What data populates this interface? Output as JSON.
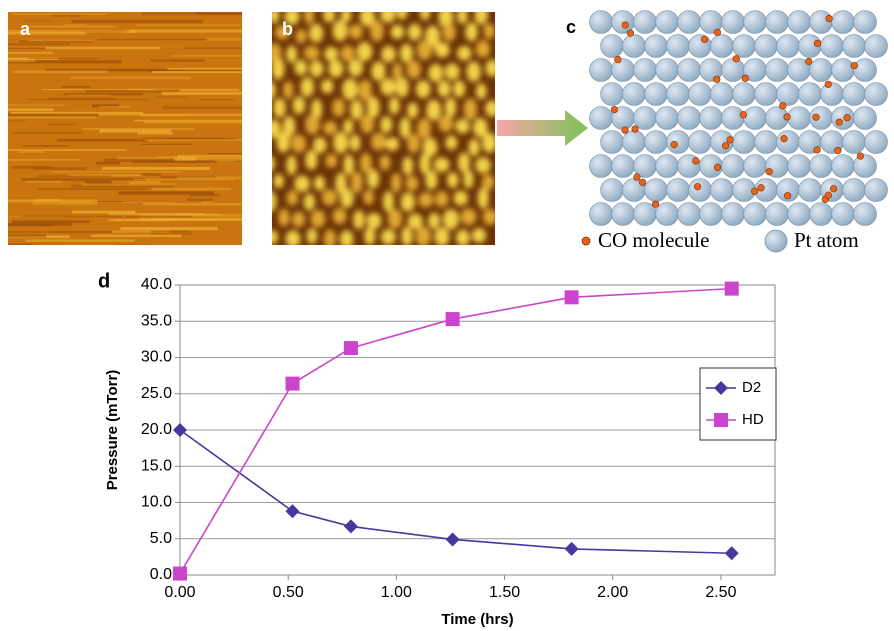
{
  "panel_labels": [
    "a",
    "b",
    "c",
    "d"
  ],
  "legend_c": [
    "CO molecule",
    "Pt atom"
  ],
  "chart_data": {
    "type": "line",
    "xlabel": "Time (hrs)",
    "ylabel": "Pressure (mTorr)",
    "x": [
      0,
      0.52,
      0.79,
      1.26,
      1.81,
      2.55
    ],
    "series": [
      {
        "name": "D2",
        "color": "#45389e",
        "marker": "diamond",
        "values": [
          20.0,
          8.8,
          6.7,
          4.9,
          3.6,
          3.0
        ]
      },
      {
        "name": "HD",
        "color": "#cc44cc",
        "marker": "square",
        "values": [
          0.2,
          26.4,
          31.3,
          35.3,
          38.3,
          39.5
        ]
      }
    ],
    "xlim": [
      0,
      2.75
    ],
    "xticks": [
      {
        "value": 0,
        "label": "0.00"
      },
      {
        "value": 0.5,
        "label": "0.50"
      },
      {
        "value": 1,
        "label": "1.00"
      },
      {
        "value": 1.5,
        "label": "1.50"
      },
      {
        "value": 2,
        "label": "2.00"
      },
      {
        "value": 2.5,
        "label": "2.50"
      }
    ],
    "ylim": [
      0,
      40
    ],
    "yticks": [
      {
        "value": 0,
        "label": "0.0"
      },
      {
        "value": 5,
        "label": "5.0"
      },
      {
        "value": 10,
        "label": "10.0"
      },
      {
        "value": 15,
        "label": "15.0"
      },
      {
        "value": 20,
        "label": "20.0"
      },
      {
        "value": 25,
        "label": "25.0"
      },
      {
        "value": 30,
        "label": "30.0"
      },
      {
        "value": 35,
        "label": "35.0"
      },
      {
        "value": 40,
        "label": "40.0"
      }
    ],
    "grid": true,
    "legend": "right"
  }
}
